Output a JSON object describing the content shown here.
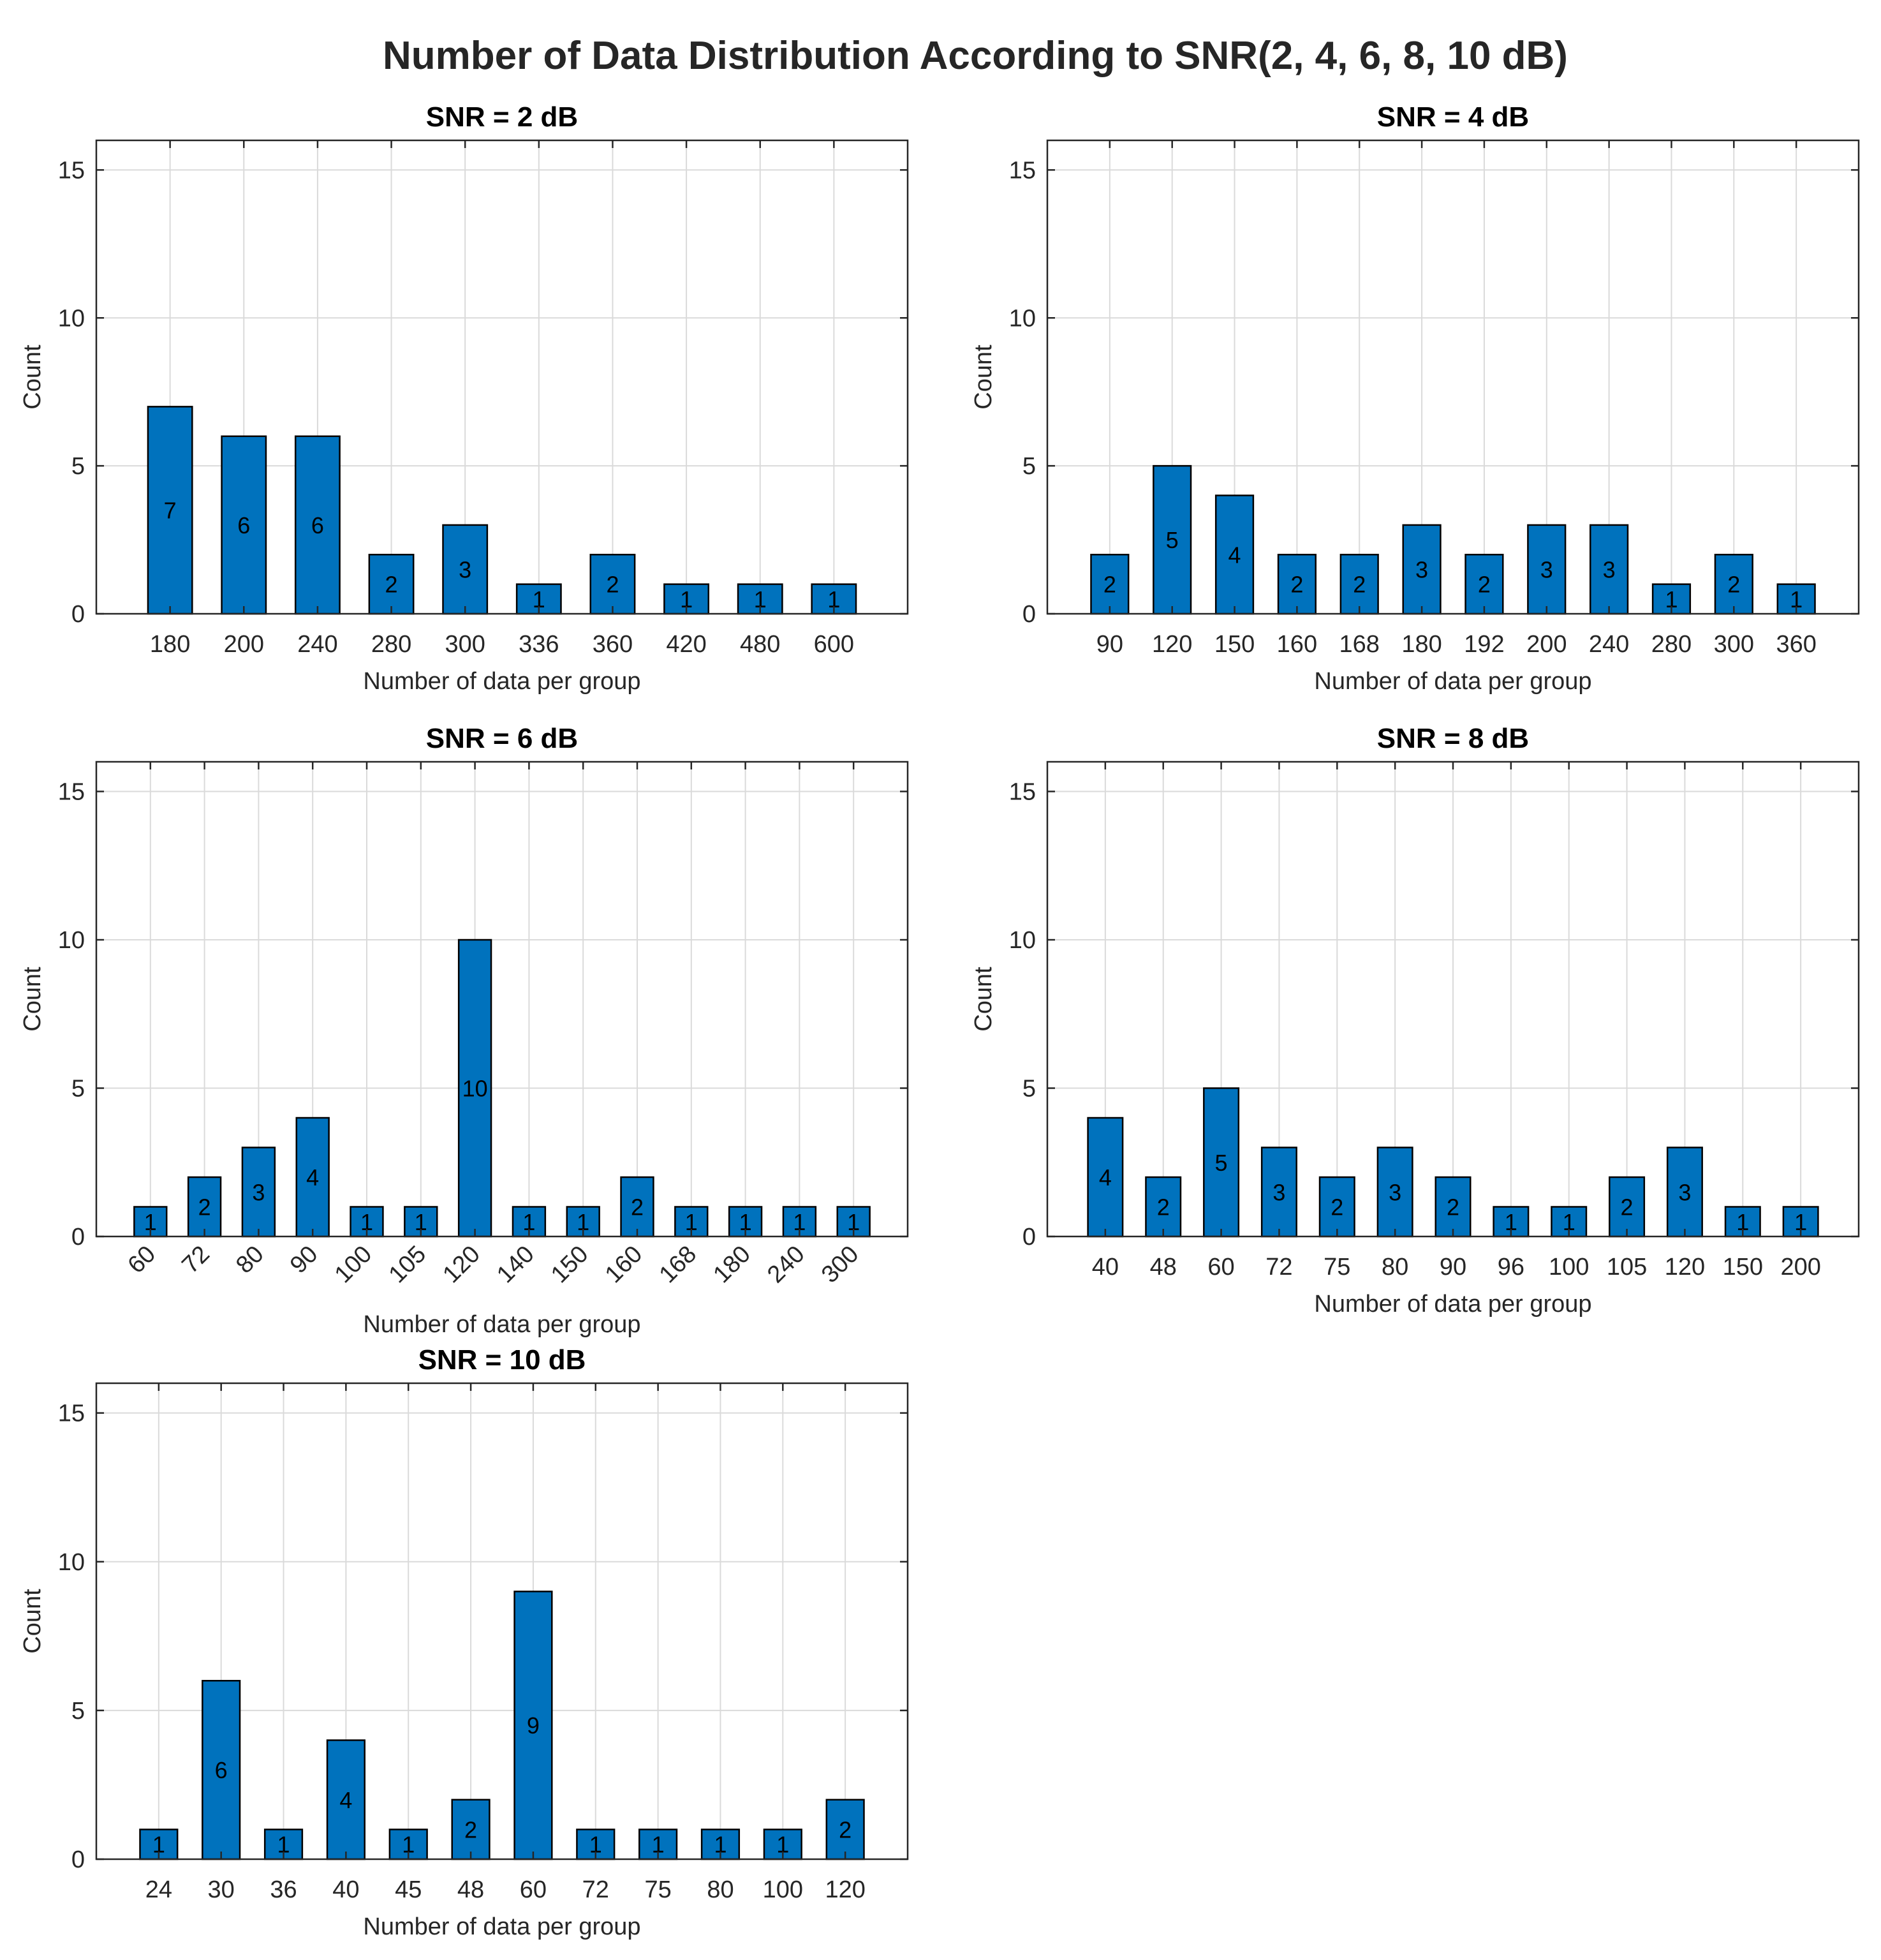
{
  "figure": {
    "title": "Number of Data Distribution According to SNR(2, 4, 6, 8, 10 dB)",
    "colors": {
      "bar": "#0072BD",
      "bar_edge": "#000000",
      "grid": "#dadada",
      "axis": "#262626"
    }
  },
  "chart_data": [
    {
      "type": "bar",
      "title": "SNR = 2 dB",
      "xlabel": "Number of data per group",
      "ylabel": "Count",
      "ylim": [
        0,
        16
      ],
      "yticks": [
        0,
        5,
        10,
        15
      ],
      "grid": true,
      "tick_rotation": 0,
      "categories": [
        "180",
        "200",
        "240",
        "280",
        "300",
        "336",
        "360",
        "420",
        "480",
        "600"
      ],
      "values": [
        7,
        6,
        6,
        2,
        3,
        1,
        2,
        1,
        1,
        1
      ]
    },
    {
      "type": "bar",
      "title": "SNR = 4 dB",
      "xlabel": "Number of data per group",
      "ylabel": "Count",
      "ylim": [
        0,
        16
      ],
      "yticks": [
        0,
        5,
        10,
        15
      ],
      "grid": true,
      "tick_rotation": 0,
      "categories": [
        "90",
        "120",
        "150",
        "160",
        "168",
        "180",
        "192",
        "200",
        "240",
        "280",
        "300",
        "360"
      ],
      "values": [
        2,
        5,
        4,
        2,
        2,
        3,
        2,
        3,
        3,
        1,
        2,
        1
      ]
    },
    {
      "type": "bar",
      "title": "SNR = 6 dB",
      "xlabel": "Number of data per group",
      "ylabel": "Count",
      "ylim": [
        0,
        16
      ],
      "yticks": [
        0,
        5,
        10,
        15
      ],
      "grid": true,
      "tick_rotation": -45,
      "categories": [
        "60",
        "72",
        "80",
        "90",
        "100",
        "105",
        "120",
        "140",
        "150",
        "160",
        "168",
        "180",
        "240",
        "300"
      ],
      "values": [
        1,
        2,
        3,
        4,
        1,
        1,
        10,
        1,
        1,
        2,
        1,
        1,
        1,
        1
      ]
    },
    {
      "type": "bar",
      "title": "SNR = 8 dB",
      "xlabel": "Number of data per group",
      "ylabel": "Count",
      "ylim": [
        0,
        16
      ],
      "yticks": [
        0,
        5,
        10,
        15
      ],
      "grid": true,
      "tick_rotation": 0,
      "categories": [
        "40",
        "48",
        "60",
        "72",
        "75",
        "80",
        "90",
        "96",
        "100",
        "105",
        "120",
        "150",
        "200"
      ],
      "values": [
        4,
        2,
        5,
        3,
        2,
        3,
        2,
        1,
        1,
        2,
        3,
        1,
        1
      ]
    },
    {
      "type": "bar",
      "title": "SNR = 10 dB",
      "xlabel": "Number of data per group",
      "ylabel": "Count",
      "ylim": [
        0,
        16
      ],
      "yticks": [
        0,
        5,
        10,
        15
      ],
      "grid": true,
      "tick_rotation": 0,
      "categories": [
        "24",
        "30",
        "36",
        "40",
        "45",
        "48",
        "60",
        "72",
        "75",
        "80",
        "100",
        "120"
      ],
      "values": [
        1,
        6,
        1,
        4,
        1,
        2,
        9,
        1,
        1,
        1,
        1,
        2
      ]
    }
  ]
}
